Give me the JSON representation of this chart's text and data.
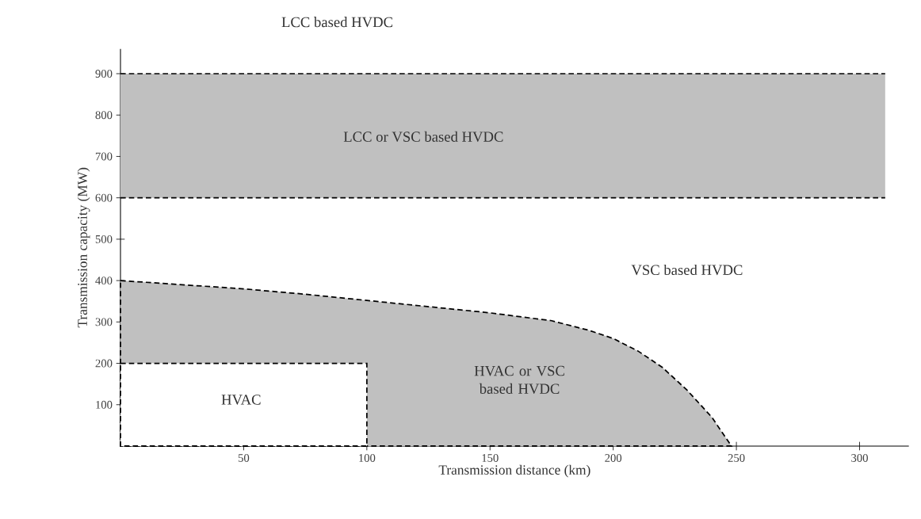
{
  "chart_data": {
    "type": "area",
    "xlabel": "Transmission distance (km)",
    "ylabel": "Transmission capacity (MW)",
    "xlim": [
      0,
      320
    ],
    "ylim": [
      0,
      960
    ],
    "xticks": [
      50,
      100,
      150,
      200,
      250,
      300
    ],
    "yticks": [
      100,
      200,
      300,
      400,
      500,
      600,
      700,
      800,
      900
    ],
    "series": [
      {
        "color": "#c0c0c0",
        "line_style": "dashed",
        "x": [
          0,
          25,
          50,
          75,
          100,
          125,
          150,
          175,
          190,
          200,
          210,
          220,
          230,
          240,
          248
        ],
        "values": [
          400,
          390,
          380,
          367,
          352,
          337,
          322,
          303,
          280,
          260,
          230,
          190,
          135,
          70,
          0
        ]
      },
      {
        "color": "#ffffff",
        "line_style": "dashed",
        "x": [
          0,
          100,
          100
        ],
        "values": [
          200,
          200,
          0
        ]
      }
    ],
    "bands": [
      {
        "axis": "y",
        "from": 600,
        "to": 900,
        "color": "#c0c0c0"
      }
    ],
    "ref_lines": [
      {
        "axis": "y",
        "value": 600,
        "line_style": "dashed"
      },
      {
        "axis": "y",
        "value": 900,
        "line_style": "dashed"
      }
    ],
    "annotations": [
      "LCC based HVDC",
      "LCC or VSC based HVDC",
      "VSC based HVDC",
      "HVAC",
      "HVAC or VSC based HVDC"
    ]
  }
}
